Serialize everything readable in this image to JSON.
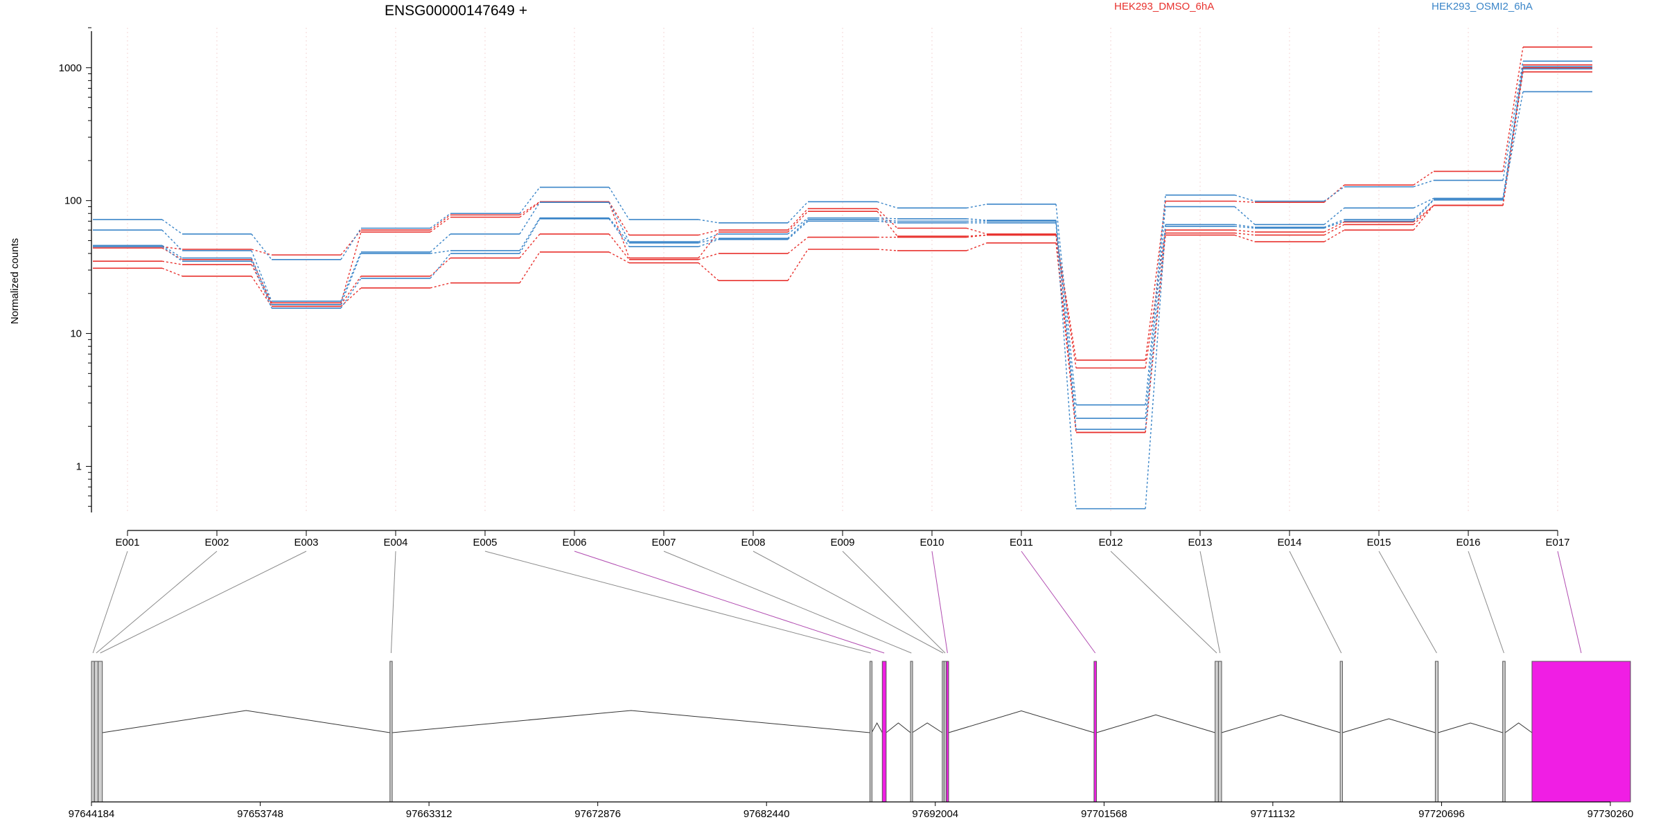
{
  "chart_data": {
    "type": "line",
    "title": "ENSG00000147649 +",
    "ylabel": "Normalized counts",
    "yscale": "log",
    "ylim": [
      0.45,
      2000
    ],
    "yticks": [
      {
        "value": 1,
        "label": "1"
      },
      {
        "value": 10,
        "label": "10"
      },
      {
        "value": 100,
        "label": "100"
      },
      {
        "value": 1000,
        "label": "1000"
      }
    ],
    "grid": "vertical dotted per exon",
    "legend": "top",
    "colors": {
      "HEK293_DMSO_6hA": "#e8312d",
      "HEK293_OSMI2_6hA": "#3a85c8",
      "highlight": "#f01ee4",
      "exon": "#cfcfcf"
    },
    "legend_entries": [
      {
        "label": "HEK293_DMSO_6hA",
        "color": "#e8312d"
      },
      {
        "label": "HEK293_OSMI2_6hA",
        "color": "#3a85c8"
      }
    ],
    "categories": [
      "E001",
      "E002",
      "E003",
      "E004",
      "E005",
      "E006",
      "E007",
      "E008",
      "E009",
      "E010",
      "E011",
      "E012",
      "E013",
      "E014",
      "E015",
      "E016",
      "E017"
    ],
    "series": [
      {
        "group": "HEK293_DMSO_6hA",
        "color": "#e8312d",
        "values": [
          45,
          43,
          39,
          60,
          78,
          98,
          55,
          60,
          87,
          62,
          56,
          6.3,
          99,
          97,
          131,
          166,
          1430
        ]
      },
      {
        "group": "HEK293_DMSO_6hA",
        "color": "#e8312d",
        "values": [
          44,
          36,
          17,
          58,
          75,
          97,
          37,
          58,
          83,
          54,
          55,
          5.5,
          60,
          58,
          69,
          92,
          1050
        ]
      },
      {
        "group": "HEK293_DMSO_6hA",
        "color": "#e8312d",
        "values": [
          35,
          33,
          16.5,
          27,
          37,
          56,
          36,
          40,
          53,
          53,
          55,
          1.8,
          57,
          55,
          66,
          92,
          1000
        ]
      },
      {
        "group": "HEK293_DMSO_6hA",
        "color": "#e8312d",
        "values": [
          31,
          27,
          16,
          22,
          24,
          41,
          34,
          25,
          43,
          42,
          48,
          1.8,
          55,
          49,
          60,
          92,
          930
        ]
      },
      {
        "group": "HEK293_OSMI2_6hA",
        "color": "#3a85c8",
        "values": [
          72,
          56,
          36,
          62,
          80,
          126,
          72,
          68,
          98,
          88,
          94,
          2.9,
          110,
          99,
          127,
          142,
          1120
        ]
      },
      {
        "group": "HEK293_OSMI2_6hA",
        "color": "#3a85c8",
        "values": [
          60,
          42,
          17.5,
          41,
          56,
          97,
          49,
          56,
          74,
          73,
          71,
          2.3,
          90,
          66,
          88,
          104,
          1020
        ]
      },
      {
        "group": "HEK293_OSMI2_6hA",
        "color": "#3a85c8",
        "values": [
          46,
          37,
          16.5,
          40,
          42,
          74,
          48,
          52,
          72,
          70,
          70,
          1.9,
          66,
          63,
          72,
          102,
          980
        ]
      },
      {
        "group": "HEK293_OSMI2_6hA",
        "color": "#3a85c8",
        "values": [
          45,
          35,
          15.5,
          26,
          40,
          73,
          45,
          51,
          70,
          68,
          68,
          0.48,
          64,
          62,
          70,
          101,
          660
        ]
      }
    ],
    "genomic_ticks": [
      "97644184",
      "97653748",
      "97663312",
      "97672876",
      "97682440",
      "97692004",
      "97701568",
      "97711132",
      "97720696",
      "97730260"
    ],
    "exons": [
      {
        "id": "E001",
        "start": 97644184,
        "end": 97644350,
        "highlight": false
      },
      {
        "id": "E002",
        "start": 97644350,
        "end": 97644560,
        "highlight": false
      },
      {
        "id": "E003",
        "start": 97644560,
        "end": 97644800,
        "highlight": false
      },
      {
        "id": "E004",
        "start": 97661100,
        "end": 97661230,
        "highlight": false
      },
      {
        "id": "E005",
        "start": 97688300,
        "end": 97688400,
        "highlight": false
      },
      {
        "id": "E006",
        "start": 97689000,
        "end": 97689220,
        "highlight": true
      },
      {
        "id": "E007",
        "start": 97690600,
        "end": 97690700,
        "highlight": false
      },
      {
        "id": "E008",
        "start": 97692400,
        "end": 97692500,
        "highlight": false
      },
      {
        "id": "E009",
        "start": 97692500,
        "end": 97692630,
        "highlight": false
      },
      {
        "id": "E010",
        "start": 97692630,
        "end": 97692760,
        "highlight": true
      },
      {
        "id": "E011",
        "start": 97701000,
        "end": 97701140,
        "highlight": true
      },
      {
        "id": "E012",
        "start": 97707860,
        "end": 97708050,
        "highlight": false
      },
      {
        "id": "E013",
        "start": 97708050,
        "end": 97708230,
        "highlight": false
      },
      {
        "id": "E014",
        "start": 97714950,
        "end": 97715080,
        "highlight": false
      },
      {
        "id": "E015",
        "start": 97720340,
        "end": 97720500,
        "highlight": false
      },
      {
        "id": "E016",
        "start": 97724160,
        "end": 97724300,
        "highlight": false
      },
      {
        "id": "E017",
        "start": 97725820,
        "end": 97731400,
        "highlight": true
      }
    ]
  }
}
